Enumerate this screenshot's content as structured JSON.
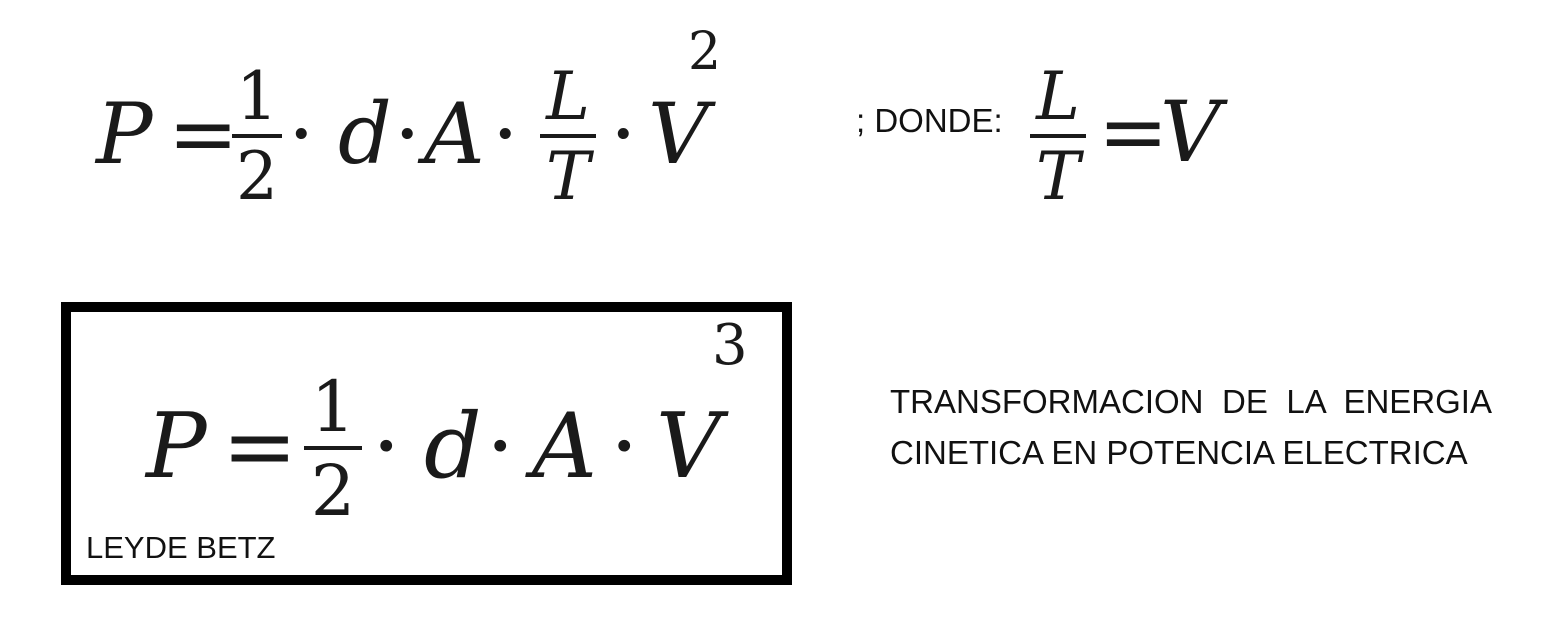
{
  "equation_main": {
    "lhs": "P",
    "equals": "=",
    "frac_num": "1",
    "frac_den": "2",
    "dot": "·",
    "var_d": "d",
    "var_A": "A",
    "frac2_num": "L",
    "frac2_den": "T",
    "var_V": "V",
    "exponent": "2"
  },
  "where_label": "; DONDE:",
  "equation_where": {
    "frac_num": "L",
    "frac_den": "T",
    "equals": "=",
    "rhs": "V"
  },
  "equation_boxed": {
    "lhs": "P",
    "equals": "=",
    "frac_num": "1",
    "frac_den": "2",
    "dot": "·",
    "var_d": "d",
    "var_A": "A",
    "var_V": "V",
    "exponent": "3"
  },
  "box_label": "LEYDE BETZ",
  "description": "TRANSFORMACION DE LA ENERGIA CINETICA EN POTENCIA ELECTRICA"
}
